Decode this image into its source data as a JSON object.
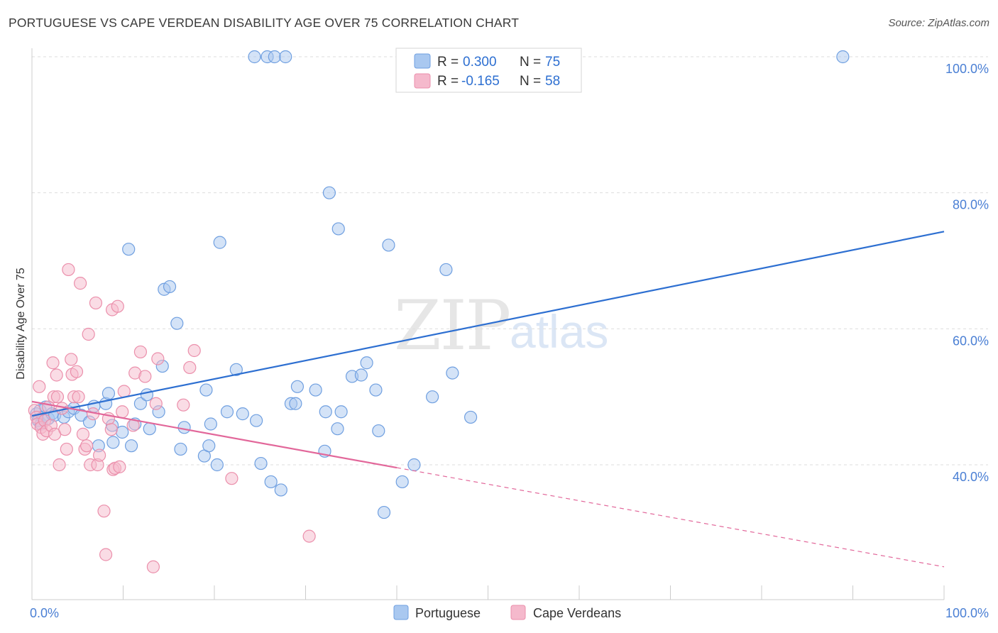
{
  "header": {
    "title": "PORTUGUESE VS CAPE VERDEAN DISABILITY AGE OVER 75 CORRELATION CHART",
    "source": "Source: ZipAtlas.com"
  },
  "watermark": {
    "zip": "ZIP",
    "atlas": "atlas"
  },
  "colors": {
    "blue_fill": "#a9c8f0",
    "blue_stroke": "#6f9fe0",
    "blue_line": "#2d6fd1",
    "pink_fill": "#f5b9cc",
    "pink_stroke": "#eb8fab",
    "pink_line": "#e2679a",
    "grid": "#dddddd",
    "axis_text": "#4a7fd4"
  },
  "legend": {
    "rows": [
      {
        "r_label": "R =",
        "r_value": "0.300",
        "n_label": "N =",
        "n_value": "75"
      },
      {
        "r_label": "R =",
        "r_value": "-0.165",
        "n_label": "N =",
        "n_value": "58"
      }
    ]
  },
  "chart_data": {
    "type": "scatter",
    "title": "PORTUGUESE VS CAPE VERDEAN DISABILITY AGE OVER 75 CORRELATION CHART",
    "xlabel": "",
    "ylabel": "Disability Age Over 75",
    "xlim": [
      0,
      100
    ],
    "ylim": [
      20,
      100
    ],
    "x_tick_labels": [
      "0.0%",
      "100.0%"
    ],
    "y_ticks": [
      40,
      60,
      80,
      100
    ],
    "y_tick_labels": [
      "40.0%",
      "60.0%",
      "80.0%",
      "100.0%"
    ],
    "grid": true,
    "legend_position": "bottom",
    "series": [
      {
        "name": "Portuguese",
        "R": 0.3,
        "N": 75,
        "trend": {
          "x0": 0,
          "y0": 47.2,
          "x1": 100,
          "y1": 74.3,
          "solid_to": 100
        },
        "points": [
          [
            0.5,
            47.5
          ],
          [
            0.7,
            46.5
          ],
          [
            0.9,
            48.0
          ],
          [
            1.0,
            46.0
          ],
          [
            1.2,
            47.0
          ],
          [
            1.5,
            48.5
          ],
          [
            1.8,
            46.8
          ],
          [
            2.2,
            47.5
          ],
          [
            2.5,
            47.3
          ],
          [
            3.5,
            47.0
          ],
          [
            4.0,
            47.8
          ],
          [
            4.6,
            48.3
          ],
          [
            5.4,
            47.3
          ],
          [
            6.3,
            46.3
          ],
          [
            6.8,
            48.6
          ],
          [
            7.3,
            42.8
          ],
          [
            8.1,
            49.0
          ],
          [
            8.4,
            50.5
          ],
          [
            8.8,
            45.8
          ],
          [
            8.9,
            43.3
          ],
          [
            9.9,
            44.8
          ],
          [
            10.6,
            71.7
          ],
          [
            10.9,
            42.8
          ],
          [
            11.3,
            46.0
          ],
          [
            11.9,
            49.0
          ],
          [
            12.6,
            50.3
          ],
          [
            12.9,
            45.3
          ],
          [
            13.9,
            47.8
          ],
          [
            14.3,
            54.5
          ],
          [
            14.5,
            65.8
          ],
          [
            15.1,
            66.2
          ],
          [
            15.9,
            60.8
          ],
          [
            16.3,
            42.3
          ],
          [
            16.7,
            45.5
          ],
          [
            19.1,
            51.0
          ],
          [
            18.9,
            41.3
          ],
          [
            19.4,
            42.8
          ],
          [
            19.6,
            46.0
          ],
          [
            20.3,
            40.0
          ],
          [
            20.6,
            72.7
          ],
          [
            21.4,
            47.8
          ],
          [
            22.4,
            54.0
          ],
          [
            23.1,
            47.5
          ],
          [
            24.6,
            46.5
          ],
          [
            25.1,
            40.2
          ],
          [
            26.2,
            37.5
          ],
          [
            27.3,
            36.3
          ],
          [
            28.4,
            49.0
          ],
          [
            28.9,
            49.0
          ],
          [
            29.1,
            51.5
          ],
          [
            31.1,
            51.0
          ],
          [
            32.1,
            42.0
          ],
          [
            32.2,
            47.8
          ],
          [
            32.6,
            80.0
          ],
          [
            33.5,
            45.3
          ],
          [
            33.6,
            74.7
          ],
          [
            33.9,
            47.8
          ],
          [
            35.1,
            53.0
          ],
          [
            36.1,
            53.2
          ],
          [
            36.7,
            55.0
          ],
          [
            37.7,
            51.0
          ],
          [
            38.0,
            45.0
          ],
          [
            38.6,
            33.0
          ],
          [
            39.1,
            72.3
          ],
          [
            40.6,
            37.5
          ],
          [
            41.9,
            40.0
          ],
          [
            43.9,
            50.0
          ],
          [
            45.4,
            68.7
          ],
          [
            46.1,
            53.5
          ],
          [
            48.1,
            47.0
          ],
          [
            24.4,
            100.0
          ],
          [
            25.8,
            100.0
          ],
          [
            26.6,
            100.0
          ],
          [
            27.8,
            100.0
          ],
          [
            88.9,
            100.0
          ]
        ]
      },
      {
        "name": "Cape Verdeans",
        "R": -0.165,
        "N": 58,
        "trend": {
          "x0": 0,
          "y0": 49.3,
          "x1": 100,
          "y1": 25.0,
          "solid_to": 40
        },
        "points": [
          [
            0.3,
            48.0
          ],
          [
            0.5,
            47.0
          ],
          [
            0.6,
            46.0
          ],
          [
            0.8,
            51.5
          ],
          [
            1.0,
            45.5
          ],
          [
            1.2,
            44.5
          ],
          [
            1.4,
            46.5
          ],
          [
            1.6,
            45.0
          ],
          [
            1.8,
            48.5
          ],
          [
            2.1,
            45.8
          ],
          [
            2.3,
            55.0
          ],
          [
            2.4,
            50.0
          ],
          [
            2.5,
            44.5
          ],
          [
            2.7,
            53.2
          ],
          [
            2.8,
            50.0
          ],
          [
            3.0,
            40.0
          ],
          [
            3.3,
            48.3
          ],
          [
            3.6,
            45.2
          ],
          [
            3.8,
            42.3
          ],
          [
            4.0,
            68.7
          ],
          [
            4.3,
            55.5
          ],
          [
            4.4,
            53.3
          ],
          [
            4.6,
            50.0
          ],
          [
            4.9,
            53.7
          ],
          [
            5.1,
            50.0
          ],
          [
            5.3,
            66.7
          ],
          [
            5.6,
            44.5
          ],
          [
            5.8,
            42.3
          ],
          [
            6.0,
            42.8
          ],
          [
            6.2,
            59.2
          ],
          [
            6.4,
            40.0
          ],
          [
            6.7,
            47.5
          ],
          [
            7.0,
            63.8
          ],
          [
            7.2,
            40.0
          ],
          [
            7.4,
            41.4
          ],
          [
            7.9,
            33.2
          ],
          [
            8.1,
            26.8
          ],
          [
            8.4,
            46.8
          ],
          [
            8.7,
            45.2
          ],
          [
            8.9,
            39.3
          ],
          [
            8.8,
            62.8
          ],
          [
            9.4,
            63.3
          ],
          [
            9.1,
            39.5
          ],
          [
            9.6,
            39.7
          ],
          [
            9.9,
            47.8
          ],
          [
            10.1,
            50.8
          ],
          [
            11.1,
            45.8
          ],
          [
            11.3,
            53.5
          ],
          [
            11.9,
            56.6
          ],
          [
            12.4,
            53.0
          ],
          [
            13.3,
            25.0
          ],
          [
            13.8,
            55.6
          ],
          [
            13.6,
            49.0
          ],
          [
            16.6,
            48.8
          ],
          [
            17.3,
            54.3
          ],
          [
            17.8,
            56.8
          ],
          [
            21.9,
            38.0
          ],
          [
            30.4,
            29.5
          ]
        ]
      }
    ]
  },
  "bottom_legend": {
    "items": [
      "Portuguese",
      "Cape Verdeans"
    ]
  }
}
